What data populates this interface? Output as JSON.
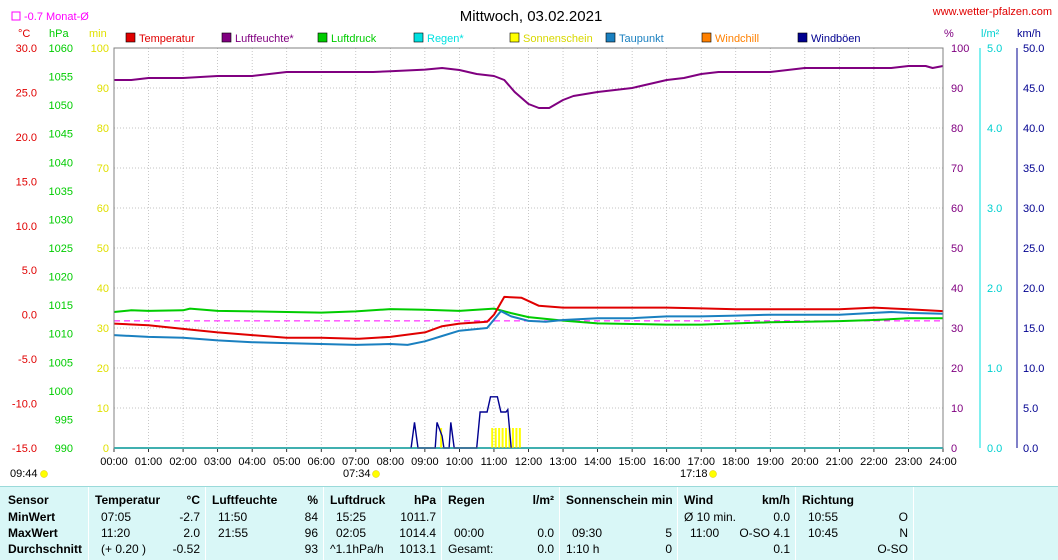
{
  "header": {
    "title": "Mittwoch, 03.02.2021",
    "source": "www.wetter-pfalzen.com",
    "monthly_avg": "-0.7 Monat-Ø"
  },
  "units": {
    "temp": "°C",
    "pressure": "hPa",
    "sun": "min",
    "humidity": "%",
    "rain": "l/m²",
    "wind": "km/h"
  },
  "colors": {
    "temperature": "#e00000",
    "humidity": "#800080",
    "pressure": "#00cc00",
    "rain": "#00e0e0",
    "sunshine": "#ffff00",
    "dewpoint": "#1a80c0",
    "windchill": "#ff8000",
    "gust": "#000090",
    "grid": "#b0b0b0"
  },
  "legend": [
    {
      "label": "Temperatur",
      "color": "#e00000"
    },
    {
      "label": "Luftfeuchte*",
      "color": "#800080"
    },
    {
      "label": "Luftdruck",
      "color": "#00cc00"
    },
    {
      "label": "Regen*",
      "color": "#00e0e0"
    },
    {
      "label": "Sonnenschein",
      "color": "#ffff00"
    },
    {
      "label": "Taupunkt",
      "color": "#1a80c0"
    },
    {
      "label": "Windchill",
      "color": "#ff8000"
    },
    {
      "label": "Windböen",
      "color": "#000090"
    }
  ],
  "sun_times": {
    "sunrise": "07:34",
    "sunset": "17:18",
    "daylight": "09:44"
  },
  "chart_data": {
    "type": "line",
    "title": "Mittwoch, 03.02.2021",
    "x_ticks": [
      "00:00",
      "01:00",
      "02:00",
      "03:00",
      "04:00",
      "05:00",
      "06:00",
      "07:00",
      "08:00",
      "09:00",
      "10:00",
      "11:00",
      "12:00",
      "13:00",
      "14:00",
      "15:00",
      "16:00",
      "17:00",
      "18:00",
      "19:00",
      "20:00",
      "21:00",
      "22:00",
      "23:00",
      "24:00"
    ],
    "axes": {
      "temperature": {
        "unit": "°C",
        "range": [
          -15,
          30
        ],
        "ticks": [
          "30.0",
          "25.0",
          "20.0",
          "15.0",
          "10.0",
          "5.0",
          "0.0",
          "-5.0",
          "-10.0",
          "-15.0"
        ]
      },
      "pressure": {
        "unit": "hPa",
        "range": [
          990,
          1060
        ],
        "ticks": [
          "1060",
          "1055",
          "1050",
          "1045",
          "1040",
          "1035",
          "1030",
          "1025",
          "1020",
          "1015",
          "1010",
          "1005",
          "1000",
          "995",
          "990"
        ]
      },
      "sunshine": {
        "unit": "min",
        "range": [
          0,
          100
        ],
        "ticks": [
          "100",
          "90",
          "80",
          "70",
          "60",
          "50",
          "40",
          "30",
          "20",
          "10",
          "0"
        ]
      },
      "humidity": {
        "unit": "%",
        "range": [
          0,
          100
        ],
        "ticks": [
          "100",
          "90",
          "80",
          "70",
          "60",
          "50",
          "40",
          "30",
          "20",
          "10",
          "0"
        ]
      },
      "rain": {
        "unit": "l/m²",
        "range": [
          0,
          5
        ],
        "ticks": [
          "5.0",
          "4.0",
          "3.0",
          "2.0",
          "1.0",
          "0.0"
        ]
      },
      "wind": {
        "unit": "km/h",
        "range": [
          0,
          50
        ],
        "ticks": [
          "50.0",
          "45.0",
          "40.0",
          "35.0",
          "30.0",
          "25.0",
          "20.0",
          "15.0",
          "10.0",
          "5.0",
          "0.0"
        ]
      }
    },
    "series": [
      {
        "name": "Luftfeuchte*",
        "axis": "humidity",
        "color": "#800080",
        "points": [
          [
            0,
            92
          ],
          [
            0.5,
            92
          ],
          [
            1,
            92.5
          ],
          [
            2,
            92.5
          ],
          [
            3,
            93
          ],
          [
            4,
            93
          ],
          [
            5,
            94
          ],
          [
            6,
            94
          ],
          [
            7,
            94
          ],
          [
            7.5,
            94
          ],
          [
            8,
            94.2
          ],
          [
            9,
            94.6
          ],
          [
            9.5,
            95
          ],
          [
            10,
            94.5
          ],
          [
            10.5,
            93.5
          ],
          [
            11,
            93
          ],
          [
            11.3,
            92
          ],
          [
            11.6,
            89
          ],
          [
            12,
            86
          ],
          [
            12.3,
            85
          ],
          [
            12.6,
            85
          ],
          [
            13,
            87
          ],
          [
            13.3,
            88
          ],
          [
            14,
            89
          ],
          [
            14.5,
            89.5
          ],
          [
            15,
            90
          ],
          [
            15.5,
            91
          ],
          [
            16,
            92
          ],
          [
            16.5,
            92.5
          ],
          [
            17,
            93.5
          ],
          [
            17.5,
            94
          ],
          [
            18,
            94
          ],
          [
            18.5,
            94
          ],
          [
            19,
            94
          ],
          [
            19.5,
            94.5
          ],
          [
            20,
            95
          ],
          [
            21,
            95
          ],
          [
            22,
            95
          ],
          [
            22.5,
            95
          ],
          [
            23,
            95.5
          ],
          [
            23.5,
            95.5
          ],
          [
            23.7,
            95
          ],
          [
            24,
            95.5
          ]
        ]
      },
      {
        "name": "Luftdruck",
        "axis": "pressure",
        "color": "#00cc00",
        "points": [
          [
            0,
            1013.8
          ],
          [
            0.5,
            1014.1
          ],
          [
            1,
            1014.0
          ],
          [
            2,
            1014.1
          ],
          [
            2.2,
            1014.4
          ],
          [
            3,
            1014.0
          ],
          [
            4,
            1013.9
          ],
          [
            5,
            1013.8
          ],
          [
            6,
            1013.7
          ],
          [
            7,
            1013.9
          ],
          [
            8,
            1014.3
          ],
          [
            9,
            1014.2
          ],
          [
            10,
            1014.0
          ],
          [
            11,
            1014.4
          ],
          [
            11.5,
            1013.6
          ],
          [
            12,
            1012.9
          ],
          [
            13,
            1012.3
          ],
          [
            14,
            1011.8
          ],
          [
            15,
            1011.7
          ],
          [
            16,
            1011.6
          ],
          [
            17,
            1011.6
          ],
          [
            18,
            1011.8
          ],
          [
            19,
            1012.0
          ],
          [
            20,
            1012.1
          ],
          [
            21,
            1012.2
          ],
          [
            22,
            1012.4
          ],
          [
            23,
            1012.7
          ],
          [
            24,
            1012.7
          ]
        ]
      },
      {
        "name": "Temperatur",
        "axis": "temperature",
        "color": "#e00000",
        "points": [
          [
            0,
            -1.0
          ],
          [
            1,
            -1.2
          ],
          [
            2,
            -1.6
          ],
          [
            3,
            -2.0
          ],
          [
            4,
            -2.3
          ],
          [
            5,
            -2.6
          ],
          [
            6,
            -2.6
          ],
          [
            7,
            -2.7
          ],
          [
            7.1,
            -2.7
          ],
          [
            8,
            -2.5
          ],
          [
            9,
            -2.0
          ],
          [
            9.5,
            -1.3
          ],
          [
            10,
            -1.0
          ],
          [
            10.8,
            -0.8
          ],
          [
            11,
            0.0
          ],
          [
            11.3,
            2.0
          ],
          [
            11.8,
            1.9
          ],
          [
            12.3,
            1.0
          ],
          [
            13,
            0.8
          ],
          [
            14,
            0.8
          ],
          [
            15,
            0.8
          ],
          [
            16,
            0.8
          ],
          [
            17,
            0.7
          ],
          [
            18,
            0.6
          ],
          [
            19,
            0.6
          ],
          [
            20,
            0.6
          ],
          [
            21,
            0.6
          ],
          [
            22,
            0.8
          ],
          [
            23,
            0.6
          ],
          [
            24,
            0.4
          ]
        ]
      },
      {
        "name": "Taupunkt",
        "axis": "temperature",
        "color": "#1a80c0",
        "points": [
          [
            0,
            -2.3
          ],
          [
            1,
            -2.5
          ],
          [
            2,
            -2.6
          ],
          [
            3,
            -2.9
          ],
          [
            4,
            -3.1
          ],
          [
            5,
            -3.2
          ],
          [
            6,
            -3.3
          ],
          [
            7,
            -3.4
          ],
          [
            8,
            -3.3
          ],
          [
            8.5,
            -3.4
          ],
          [
            9,
            -3.0
          ],
          [
            9.5,
            -2.4
          ],
          [
            10,
            -1.8
          ],
          [
            10.8,
            -1.5
          ],
          [
            11.2,
            0.4
          ],
          [
            11.5,
            -0.2
          ],
          [
            12,
            -0.7
          ],
          [
            12.5,
            -0.8
          ],
          [
            13,
            -0.6
          ],
          [
            14,
            -0.4
          ],
          [
            15,
            -0.4
          ],
          [
            16,
            -0.2
          ],
          [
            17,
            -0.2
          ],
          [
            18,
            -0.1
          ],
          [
            19,
            0.0
          ],
          [
            20,
            0.0
          ],
          [
            21,
            0.0
          ],
          [
            22,
            0.2
          ],
          [
            22.5,
            0.3
          ],
          [
            23,
            0.2
          ],
          [
            24,
            0.1
          ]
        ]
      }
    ],
    "sunshine_minutes": [
      [
        9.47,
        5
      ],
      [
        10.95,
        5
      ],
      [
        11.05,
        5
      ],
      [
        11.15,
        5
      ],
      [
        11.25,
        5
      ],
      [
        11.35,
        5
      ],
      [
        11.45,
        5
      ],
      [
        11.55,
        5
      ],
      [
        11.65,
        5
      ],
      [
        11.75,
        5
      ]
    ],
    "wind_gusts": {
      "axis": "wind",
      "points": [
        [
          8.6,
          0
        ],
        [
          8.7,
          3.2
        ],
        [
          8.8,
          0
        ],
        [
          9.3,
          0
        ],
        [
          9.35,
          3.2
        ],
        [
          9.5,
          1.5
        ],
        [
          9.55,
          0
        ],
        [
          9.7,
          0
        ],
        [
          9.75,
          3.2
        ],
        [
          9.85,
          0
        ],
        [
          10.5,
          0
        ],
        [
          10.6,
          4.5
        ],
        [
          10.8,
          4.5
        ],
        [
          10.9,
          6.4
        ],
        [
          11.1,
          6.4
        ],
        [
          11.2,
          4.5
        ],
        [
          11.35,
          4.5
        ],
        [
          11.4,
          4.8
        ],
        [
          11.5,
          0
        ]
      ]
    },
    "monthly_avg_temp": -0.7
  },
  "stats": {
    "headers": {
      "sensor": "Sensor",
      "temp": "Temperatur",
      "temp_unit": "°C",
      "hum": "Luftfeuchte",
      "hum_unit": "%",
      "press": "Luftdruck",
      "press_unit": "hPa",
      "rain": "Regen",
      "rain_unit": "l/m²",
      "sun": "Sonnenschein min",
      "wind": "Wind",
      "wind_unit": "km/h",
      "dir": "Richtung"
    },
    "row_labels": [
      "MinWert",
      "MaxWert",
      "Durchschnitt"
    ],
    "temp": [
      [
        "07:05",
        "-2.7"
      ],
      [
        "11:20",
        "2.0"
      ],
      [
        "(+ 0.20 )",
        "-0.52"
      ]
    ],
    "hum": [
      [
        "11:50",
        "84"
      ],
      [
        "21:55",
        "96"
      ],
      [
        "",
        "93"
      ]
    ],
    "press": [
      [
        "15:25",
        "1011.7"
      ],
      [
        "02:05",
        "1014.4"
      ],
      [
        "^1.1hPa/h",
        "1013.1"
      ]
    ],
    "rain": [
      [
        "",
        ""
      ],
      [
        "00:00",
        "0.0"
      ],
      [
        "Gesamt:",
        "0.0"
      ]
    ],
    "sun": [
      [
        "",
        ""
      ],
      [
        "09:30",
        "5"
      ],
      [
        "1:10 h",
        "0"
      ]
    ],
    "wind": [
      [
        "Ø 10 min.",
        "0.0"
      ],
      [
        "11:00",
        "O-SO  4.1"
      ],
      [
        "",
        "0.1"
      ]
    ],
    "dir": [
      [
        "10:55",
        "O"
      ],
      [
        "10:45",
        "N"
      ],
      [
        "",
        "O-SO"
      ]
    ]
  }
}
